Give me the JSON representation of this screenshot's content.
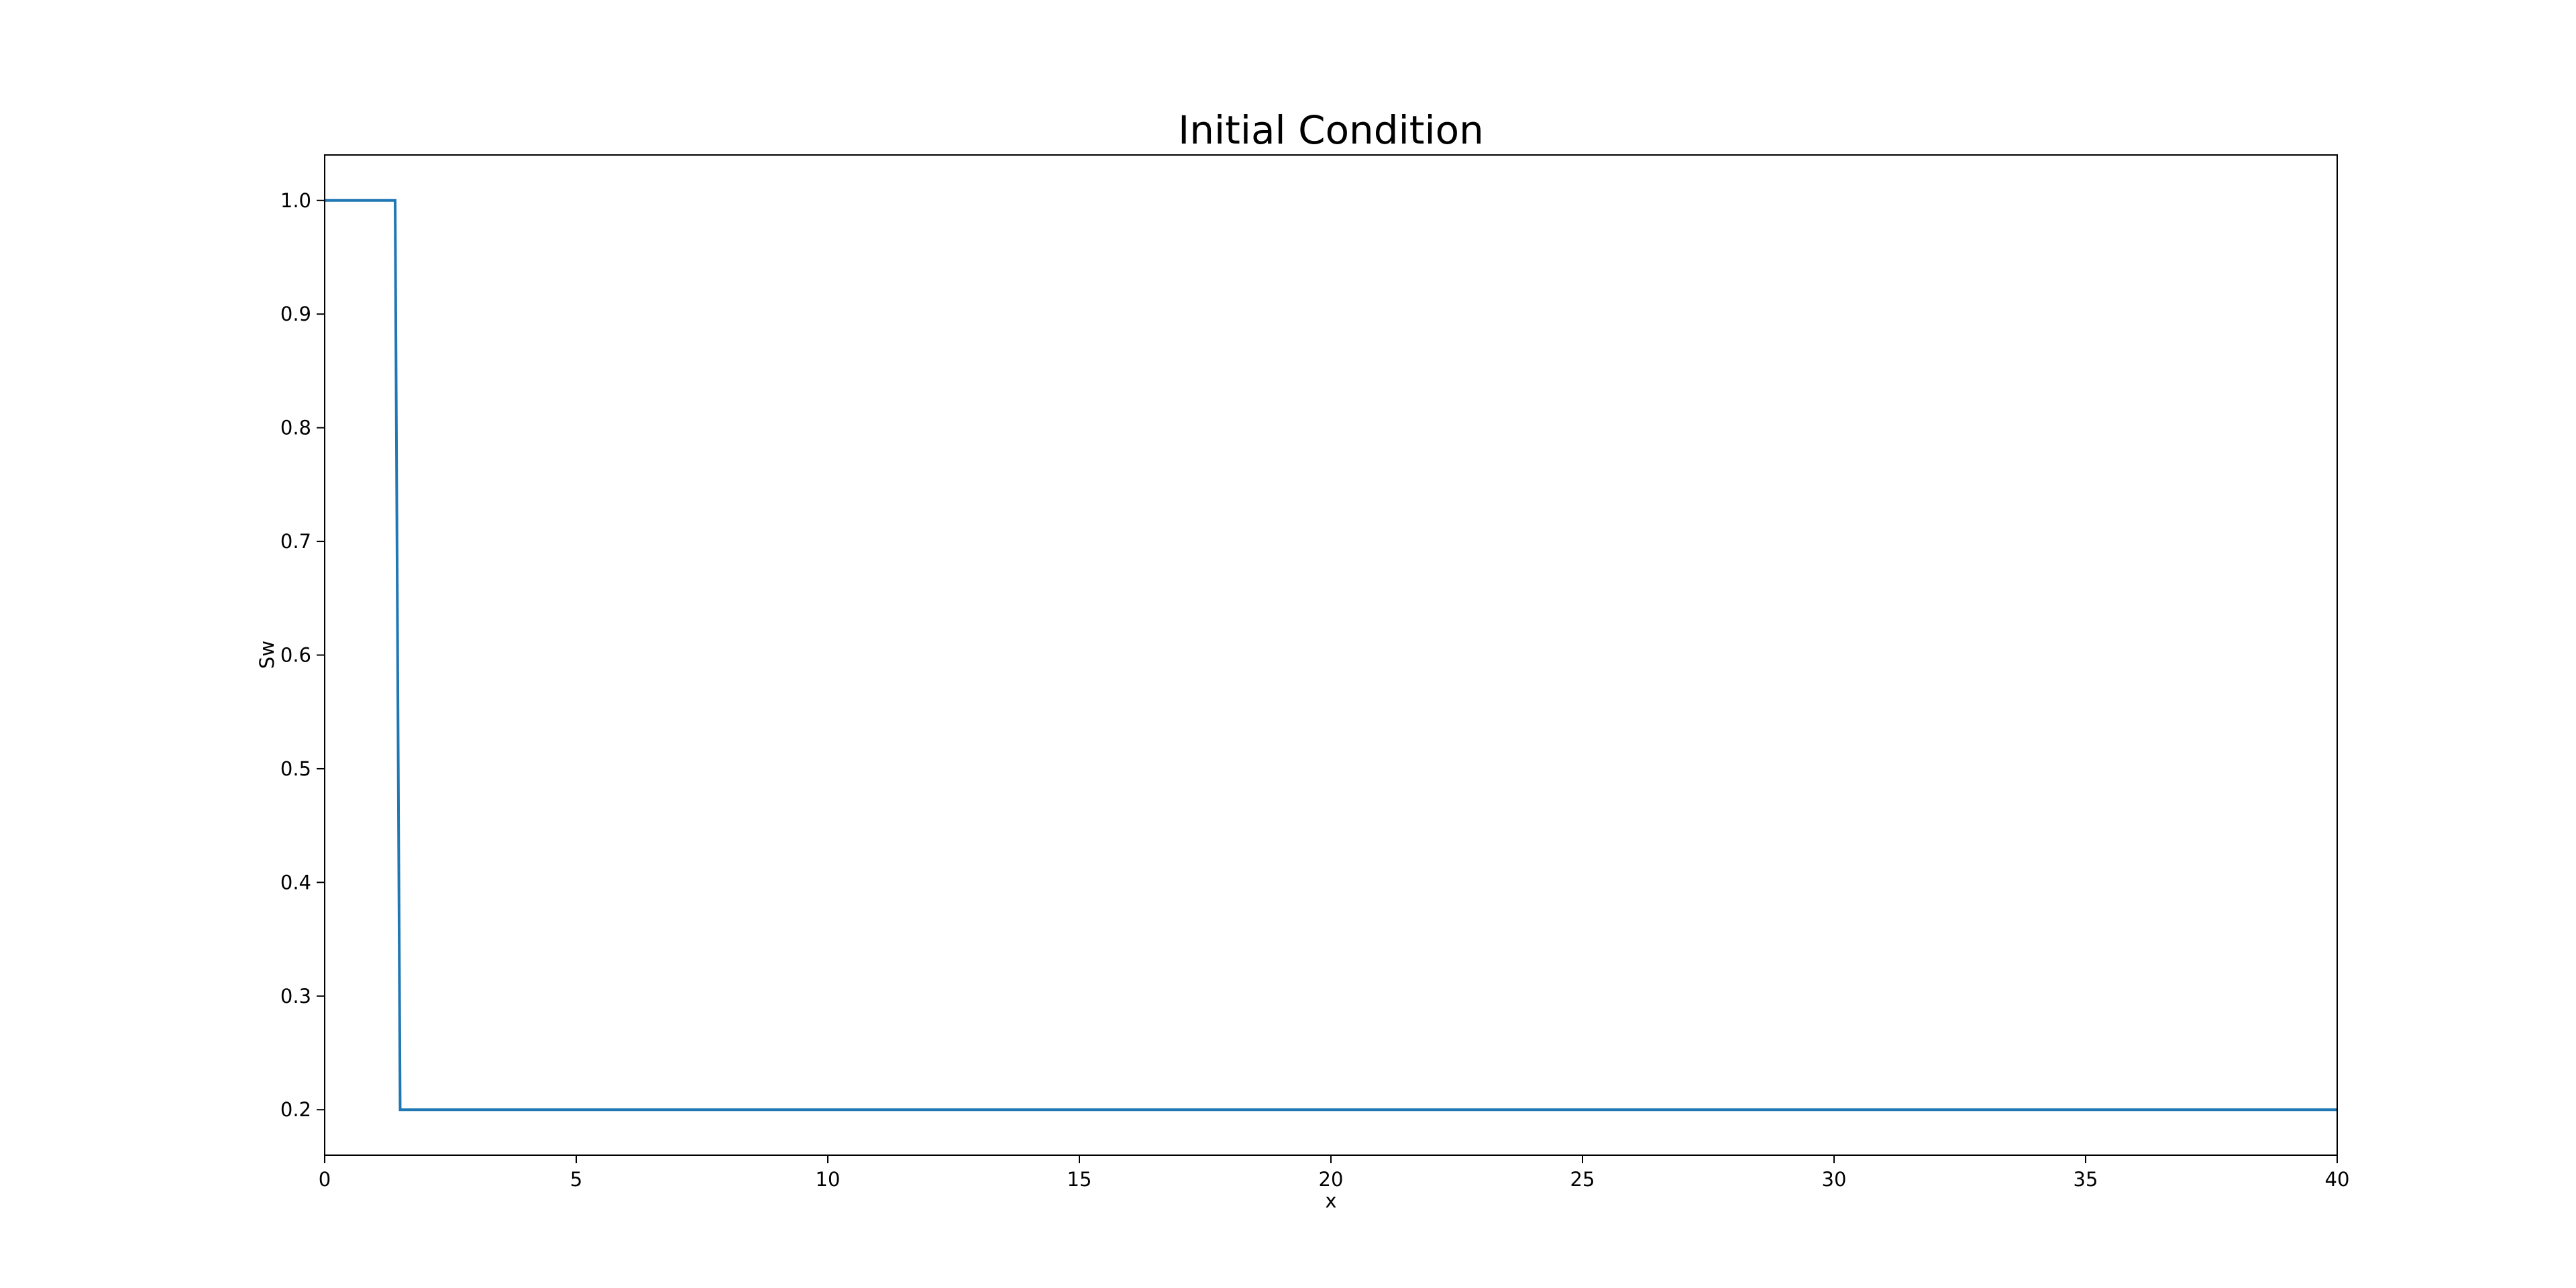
{
  "chart_data": {
    "type": "line",
    "title": "Initial Condition",
    "xlabel": "x",
    "ylabel": "Sw",
    "xlim": [
      0,
      40
    ],
    "ylim": [
      0.16,
      1.04
    ],
    "x_ticks": [
      0,
      5,
      10,
      15,
      20,
      25,
      30,
      35,
      40
    ],
    "x_tick_labels": [
      "0",
      "5",
      "10",
      "15",
      "20",
      "25",
      "30",
      "35",
      "40"
    ],
    "y_ticks": [
      0.2,
      0.3,
      0.4,
      0.5,
      0.6,
      0.7,
      0.8,
      0.9,
      1.0
    ],
    "y_tick_labels": [
      "0.2",
      "0.3",
      "0.4",
      "0.5",
      "0.6",
      "0.7",
      "0.8",
      "0.9",
      "1.0"
    ],
    "grid": false,
    "series": [
      {
        "color": "#1f77b4",
        "x": [
          0,
          1.4,
          1.5,
          40
        ],
        "y": [
          1.0,
          1.0,
          0.2,
          0.2
        ]
      }
    ]
  }
}
